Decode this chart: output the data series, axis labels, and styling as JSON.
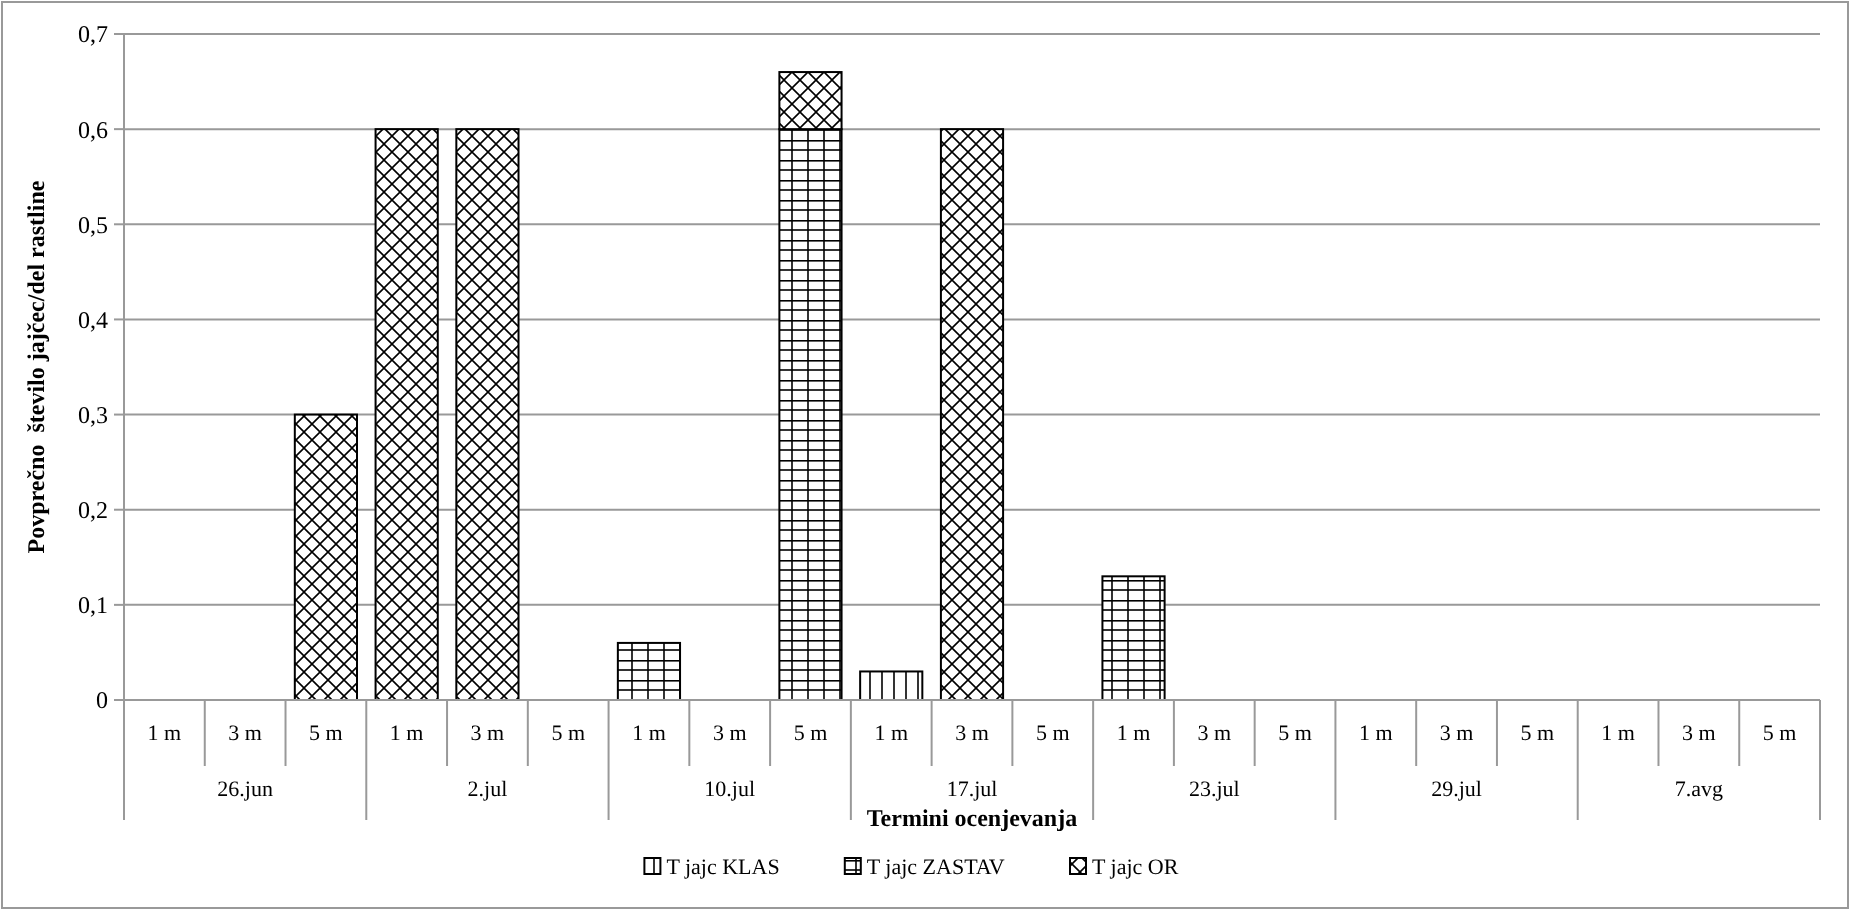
{
  "chart_data": {
    "type": "bar",
    "stacked": true,
    "xlabel": "Termini ocenjevanja",
    "ylabel": "Povprečno  število jajčec/del rastline",
    "categories": [
      "1 m",
      "3 m",
      "5 m",
      "1 m",
      "3 m",
      "5 m",
      "1 m",
      "3 m",
      "5 m",
      "1 m",
      "3 m",
      "5 m",
      "1 m",
      "3 m",
      "5 m",
      "1 m",
      "3 m",
      "5 m",
      "1 m",
      "3 m",
      "5 m"
    ],
    "annotations": [
      "26.jun",
      "2.jul",
      "10.jul",
      "17.jul",
      "23.jul",
      "29.jul",
      "7.avg"
    ],
    "series": [
      {
        "name": "T jajc KLAS",
        "color": "#000000",
        "values": [
          0,
          0,
          0,
          0,
          0,
          0,
          0,
          0,
          0,
          0.03,
          0,
          0,
          0,
          0,
          0,
          0,
          0,
          0,
          0,
          0,
          0
        ]
      },
      {
        "name": "T jajc ZASTAV",
        "color": "#000000",
        "values": [
          0,
          0,
          0,
          0,
          0,
          0,
          0.06,
          0,
          0.6,
          0,
          0,
          0,
          0.13,
          0,
          0,
          0,
          0,
          0,
          0,
          0,
          0
        ]
      },
      {
        "name": "T jajc OR",
        "color": "#000000",
        "values": [
          0,
          0,
          0.3,
          0.6,
          0.6,
          0,
          0,
          0,
          0.06,
          0,
          0.6,
          0,
          0,
          0,
          0,
          0,
          0,
          0,
          0,
          0,
          0
        ]
      }
    ],
    "ylim": [
      0,
      0.7
    ],
    "yticks": [
      {
        "value": 0,
        "label": "0"
      },
      {
        "value": 0.1,
        "label": "0,1"
      },
      {
        "value": 0.2,
        "label": "0,2"
      },
      {
        "value": 0.3,
        "label": "0,3"
      },
      {
        "value": 0.4,
        "label": "0,4"
      },
      {
        "value": 0.5,
        "label": "0,5"
      },
      {
        "value": 0.6,
        "label": "0,6"
      },
      {
        "value": 0.7,
        "label": "0,7"
      }
    ],
    "grid": "y",
    "legend": "bottom"
  }
}
